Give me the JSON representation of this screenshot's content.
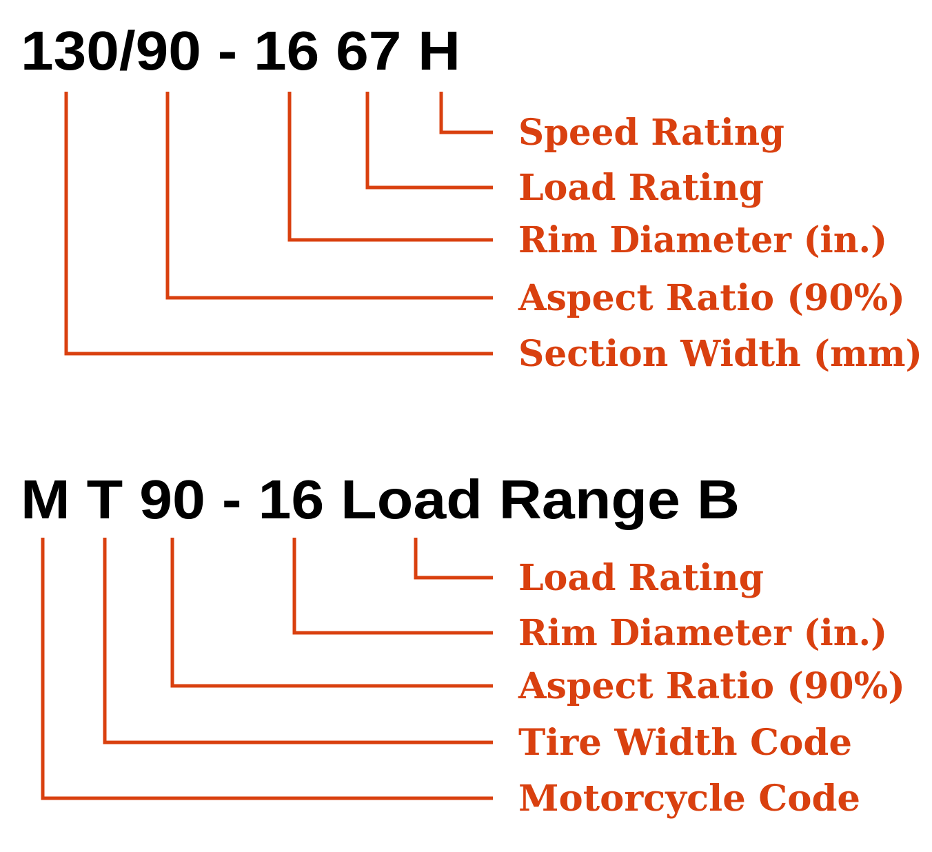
{
  "colors": {
    "accent": "#d9400f",
    "code": "#000000"
  },
  "diagrams": [
    {
      "code": "130/90 - 16 67 H",
      "labels": [
        "Speed Rating",
        "Load Rating",
        "Rim Diameter (in.)",
        "Aspect Ratio (90%)",
        "Section Width (mm)"
      ]
    },
    {
      "code": "M T 90 - 16 Load Range B",
      "labels": [
        "Load Rating",
        "Rim Diameter (in.)",
        "Aspect Ratio (90%)",
        "Tire Width Code",
        "Motorcycle Code"
      ]
    }
  ]
}
